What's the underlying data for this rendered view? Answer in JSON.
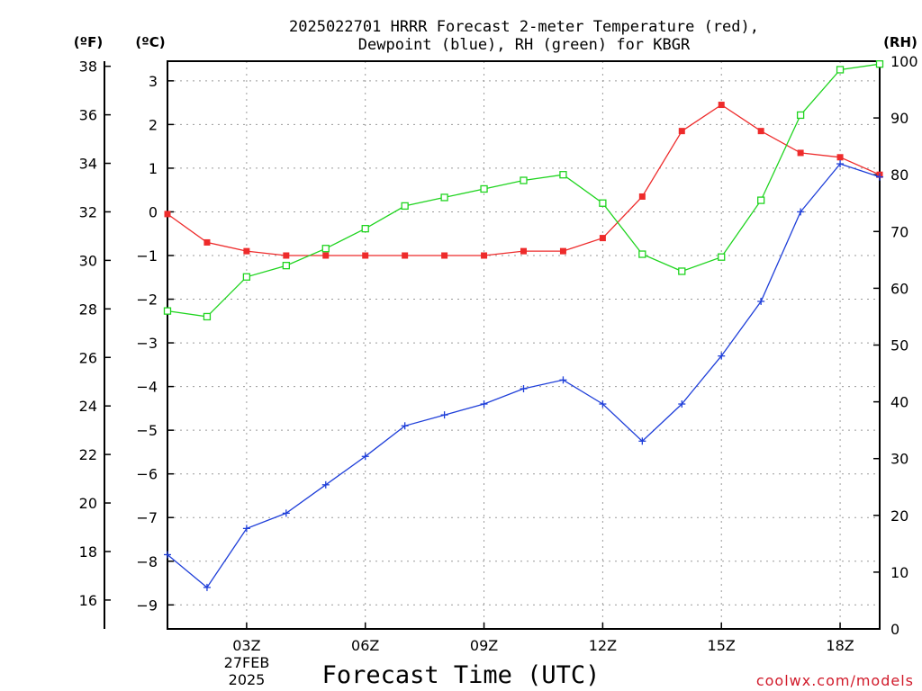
{
  "chart_data": {
    "type": "line",
    "title_line1": "2025022701 HRRR Forecast 2-meter Temperature (red),",
    "title_line2": "Dewpoint (blue), RH (green) for KBGR",
    "xlabel": "Forecast Time (UTC)",
    "date_label": {
      "day": "27FEB",
      "year": "2025"
    },
    "credit": "coolwx.com/models",
    "credit_color": "#d11a2a",
    "x_hours": [
      1,
      2,
      3,
      4,
      5,
      6,
      7,
      8,
      9,
      10,
      11,
      12,
      13,
      14,
      15,
      16,
      17,
      18,
      19
    ],
    "xlim": [
      1,
      19
    ],
    "x_ticks": [
      {
        "hour": 3,
        "label": "03Z"
      },
      {
        "hour": 6,
        "label": "06Z"
      },
      {
        "hour": 9,
        "label": "09Z"
      },
      {
        "hour": 12,
        "label": "12Z"
      },
      {
        "hour": 15,
        "label": "15Z"
      },
      {
        "hour": 18,
        "label": "18Z"
      }
    ],
    "axes": {
      "fahrenheit": {
        "unit": "(ºF)",
        "ticks": [
          "16",
          "18",
          "20",
          "22",
          "24",
          "26",
          "28",
          "30",
          "32",
          "34",
          "36",
          "38"
        ]
      },
      "celsius": {
        "unit": "(ºC)",
        "ticks": [
          "−9",
          "−8",
          "−7",
          "−6",
          "−5",
          "−4",
          "−3",
          "−2",
          "−1",
          "0",
          "1",
          "2",
          "3"
        ],
        "ylim": [
          -9.55,
          3.45
        ]
      },
      "rh": {
        "unit": "(RH)",
        "ticks": [
          "0",
          "10",
          "20",
          "30",
          "40",
          "50",
          "60",
          "70",
          "80",
          "90",
          "100"
        ],
        "ylim": [
          0,
          100
        ]
      }
    },
    "series": [
      {
        "key": "temp",
        "units": "C",
        "color": "#ee2b2b",
        "marker": "filled-square",
        "values": [
          -0.05,
          -0.7,
          -0.9,
          -1.0,
          -1.0,
          -1.0,
          -1.0,
          -1.0,
          -1.0,
          -0.9,
          -0.9,
          -0.6,
          0.35,
          1.85,
          2.45,
          1.85,
          1.35,
          1.25,
          0.85
        ]
      },
      {
        "key": "dewpoint",
        "units": "C",
        "color": "#1f3fd9",
        "marker": "plus",
        "values": [
          -7.85,
          -8.6,
          -7.25,
          -6.9,
          -6.25,
          -5.6,
          -4.9,
          -4.65,
          -4.4,
          -4.05,
          -3.85,
          -4.4,
          -5.25,
          -4.4,
          -3.3,
          -2.05,
          -0.0,
          1.1,
          0.8
        ]
      },
      {
        "key": "rh",
        "units": "%",
        "color": "#1fd41f",
        "marker": "open-square",
        "values": [
          56,
          55,
          62,
          64,
          67,
          70.5,
          74.5,
          76,
          77.5,
          79,
          80,
          75,
          66,
          63,
          65.5,
          75.5,
          90.5,
          98.5,
          99.5
        ]
      }
    ]
  }
}
